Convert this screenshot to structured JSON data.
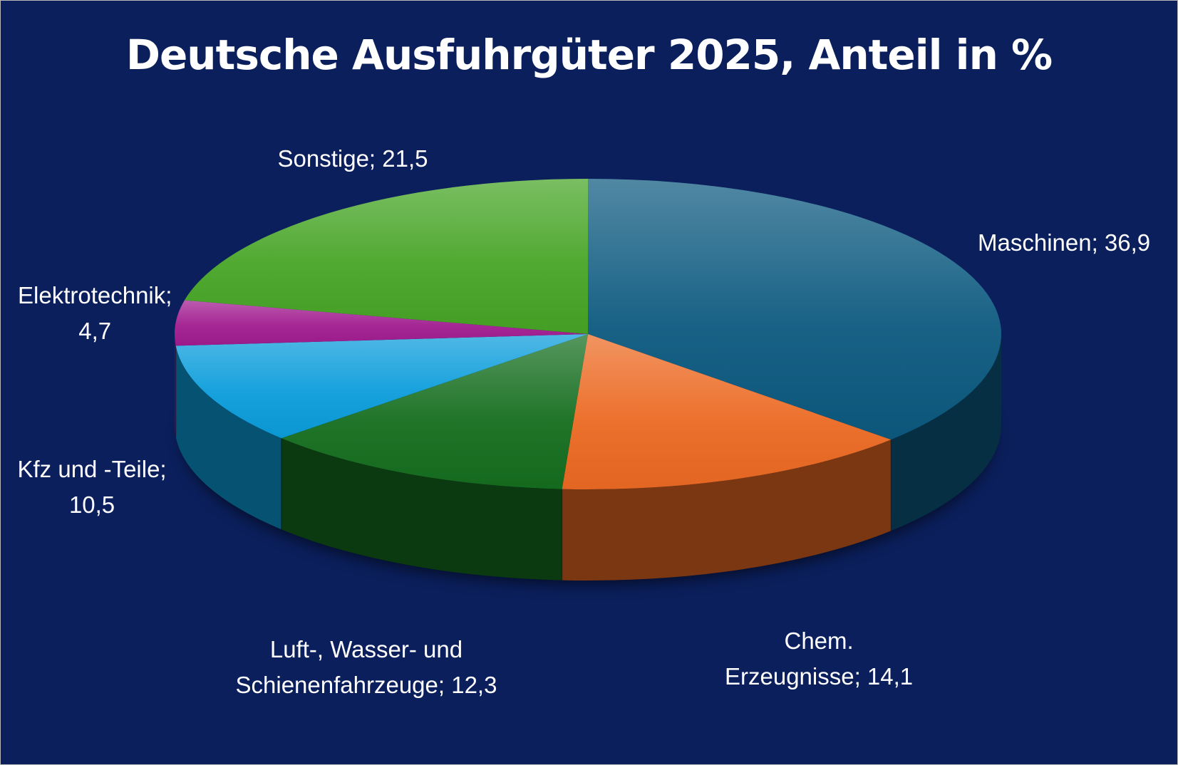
{
  "chart_data": {
    "type": "pie",
    "title": "Deutsche Ausfuhrgüter 2025, Anteil in %",
    "slices": [
      {
        "name": "Maschinen",
        "value": 36.9,
        "label_lines": [
          "Maschinen; 36,9"
        ],
        "color": "#0d5a80"
      },
      {
        "name": "Chem. Erzeugnisse",
        "value": 14.1,
        "label_lines": [
          "Chem.",
          "Erzeugnisse; 14,1"
        ],
        "color": "#ec6a23"
      },
      {
        "name": "Luft-, Wasser- und Schienenfahrzeuge",
        "value": 12.3,
        "label_lines": [
          "Luft-, Wasser- und",
          "Schienenfahrzeuge; 12,3"
        ],
        "color": "#156e1f"
      },
      {
        "name": "Kfz und -Teile",
        "value": 10.5,
        "label_lines": [
          "Kfz und -Teile;",
          "10,5"
        ],
        "color": "#0b9ddb"
      },
      {
        "name": "Elektrotechnik",
        "value": 4.7,
        "label_lines": [
          "Elektrotechnik;",
          "4,7"
        ],
        "color": "#a11c90"
      },
      {
        "name": "Sonstige",
        "value": 21.5,
        "label_lines": [
          "Sonstige; 21,5"
        ],
        "color": "#47a526"
      }
    ],
    "colors": {
      "background": "#0b1f5c",
      "text": "#ffffff"
    }
  }
}
